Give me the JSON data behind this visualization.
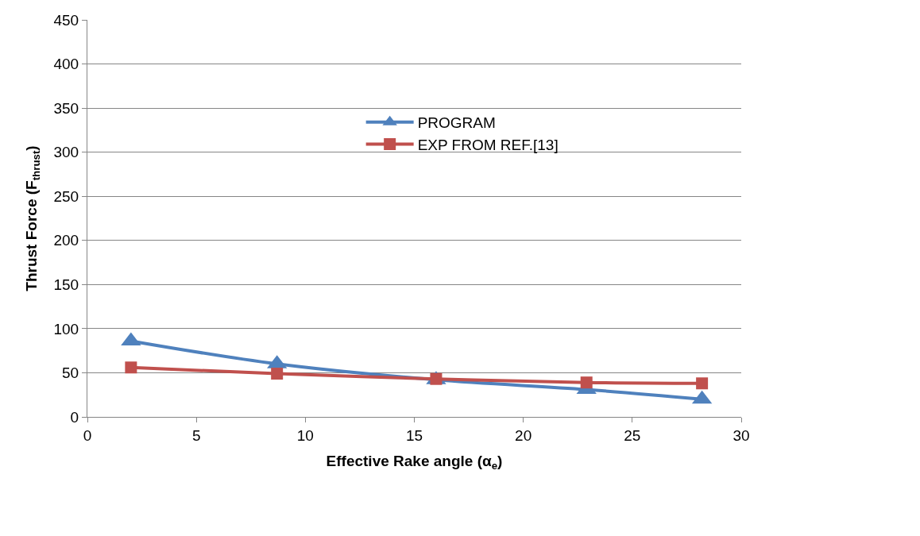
{
  "chart_data": {
    "type": "line",
    "xlabel": "Effective Rake angle (α$_{e}$)",
    "ylabel": "Thrust Force (F$_{thrust}$)",
    "xlim": [
      0,
      30
    ],
    "xticks": [
      0,
      5,
      10,
      15,
      20,
      25,
      30
    ],
    "ylim": [
      0,
      450
    ],
    "yticks": [
      0,
      50,
      100,
      150,
      200,
      250,
      300,
      350,
      400,
      450
    ],
    "grid": "y",
    "legend": "top",
    "line_style": "solid",
    "series": [
      {
        "name": "PROGRAM",
        "color": "#4f81bd",
        "marker": "triangle",
        "x": [
          2,
          8.7,
          16,
          22.9,
          28.2
        ],
        "values": [
          86,
          60,
          42,
          31,
          20
        ]
      },
      {
        "name": "EXP FROM REF.[13]",
        "color": "#c0504d",
        "marker": "square",
        "x": [
          2,
          8.7,
          16,
          22.9,
          28.2
        ],
        "values": [
          56,
          49,
          43,
          39,
          38
        ]
      }
    ]
  }
}
